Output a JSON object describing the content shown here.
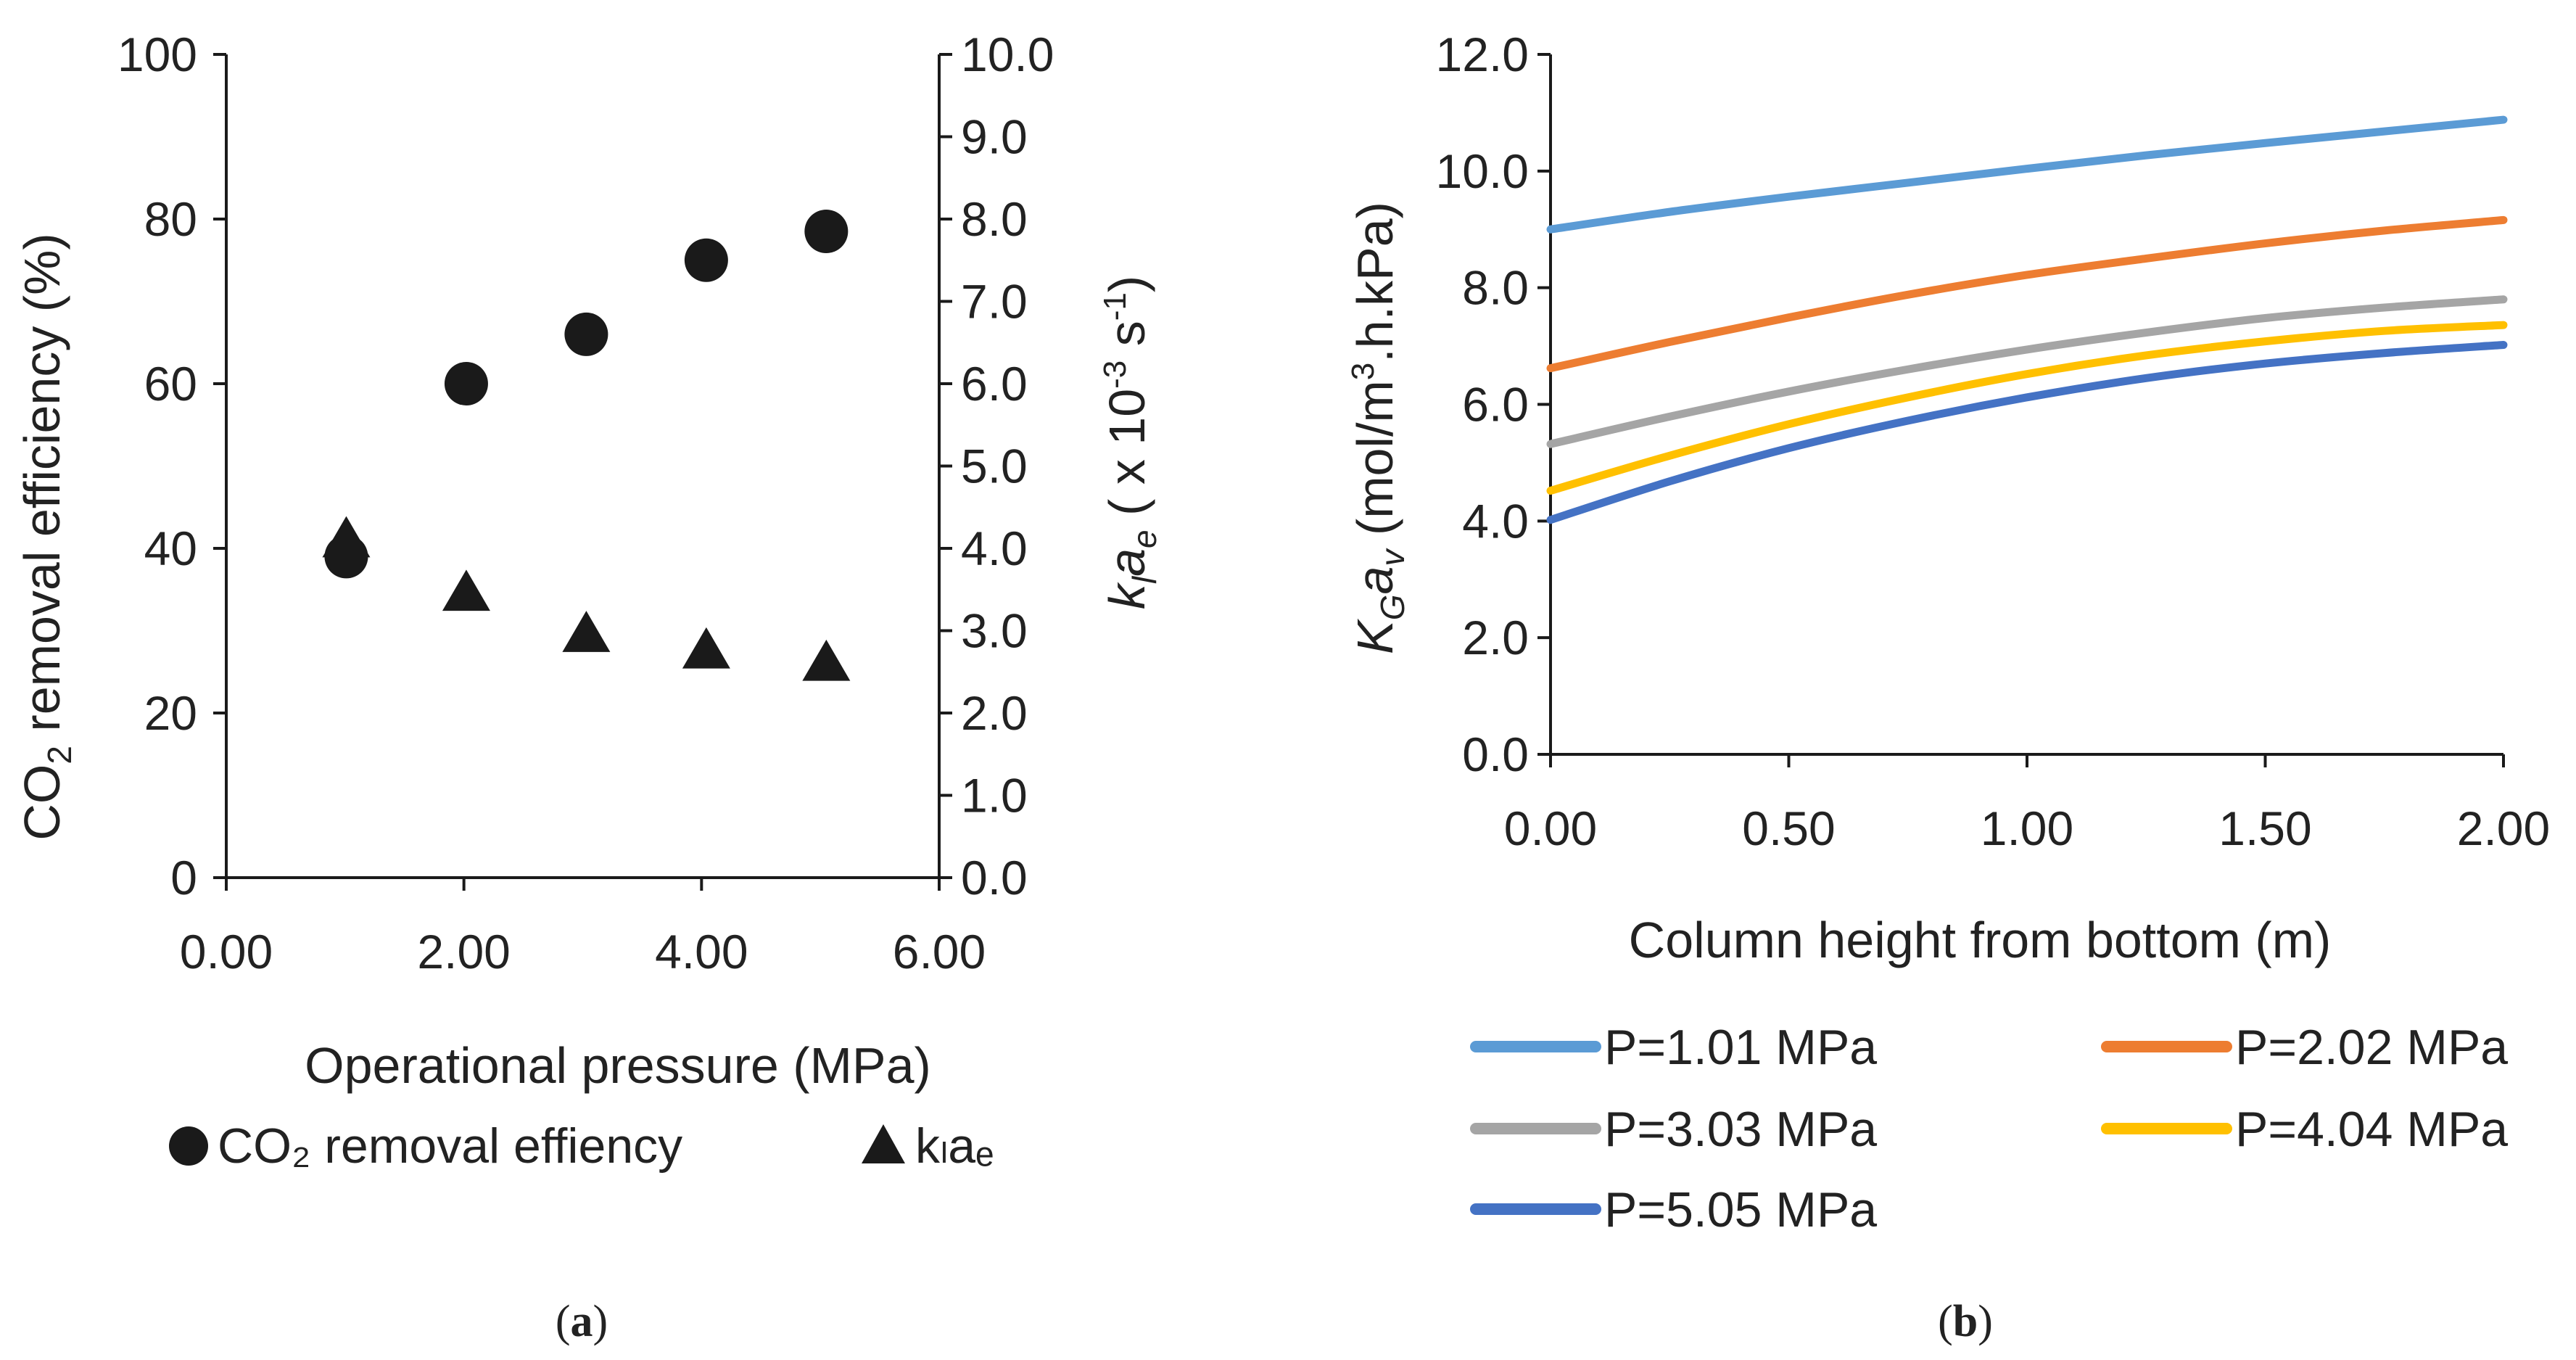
{
  "chart_data": [
    {
      "panel": "a",
      "caption": "(a)",
      "caption_parts": {
        "open": "(",
        "letter": "a",
        "close": ")"
      },
      "type": "scatter",
      "xlabel": "Operational pressure (MPa)",
      "xlim": [
        0,
        6
      ],
      "xticks": [
        "0.00",
        "2.00",
        "4.00",
        "6.00"
      ],
      "ylabel_left": {
        "text": "CO",
        "sub": "2",
        "rest": " removal efficiency (%)"
      },
      "ylim_left": [
        0,
        100
      ],
      "yticks_left": [
        "0",
        "20",
        "40",
        "60",
        "80",
        "100"
      ],
      "ylabel_right": {
        "k": "k",
        "k_sub": "l",
        "a": "a",
        "a_sub": "e",
        "open": " ( x 10",
        "exp1": "-3",
        "mid": " s",
        "exp2": "-1",
        "close": ")"
      },
      "ylim_right": [
        0,
        10
      ],
      "yticks_right": [
        "0.0",
        "1.0",
        "2.0",
        "3.0",
        "4.0",
        "5.0",
        "6.0",
        "7.0",
        "8.0",
        "9.0",
        "10.0"
      ],
      "series": [
        {
          "name": "CO₂ removal effiency",
          "marker": "circle",
          "axis": "left",
          "x": [
            1.01,
            2.02,
            3.03,
            4.04,
            5.05
          ],
          "y": [
            39,
            60,
            66,
            75,
            78.5
          ]
        },
        {
          "name": "kₗaₑ",
          "marker": "triangle",
          "axis": "right",
          "x": [
            1.01,
            2.02,
            3.03,
            4.04,
            5.05
          ],
          "y": [
            4.1,
            3.45,
            2.95,
            2.75,
            2.6
          ]
        }
      ]
    },
    {
      "panel": "b",
      "caption": "(b)",
      "caption_parts": {
        "open": "(",
        "letter": "b",
        "close": ")"
      },
      "type": "line",
      "xlabel": "Column height from bottom (m)",
      "xlim": [
        0,
        2
      ],
      "xticks": [
        "0.00",
        "0.50",
        "1.00",
        "1.50",
        "2.00"
      ],
      "ylabel": {
        "K": "K",
        "K_sub": "G",
        "a": "a",
        "a_sub": "v",
        "open": " (mol/m",
        "exp": "3",
        "close": ".h.kPa)"
      },
      "ylim": [
        0,
        12
      ],
      "yticks": [
        "0.0",
        "2.0",
        "4.0",
        "6.0",
        "8.0",
        "10.0",
        "12.0"
      ],
      "x": [
        0,
        0.25,
        0.5,
        0.75,
        1.0,
        1.25,
        1.5,
        1.75,
        2.0
      ],
      "series": [
        {
          "name": "P=1.01 MPa",
          "color": "#5b9bd5",
          "values": [
            9.0,
            9.3,
            9.56,
            9.8,
            10.04,
            10.27,
            10.48,
            10.68,
            10.88
          ]
        },
        {
          "name": "P=2.02 MPa",
          "color": "#ed7d31",
          "values": [
            6.62,
            7.07,
            7.49,
            7.88,
            8.22,
            8.5,
            8.76,
            8.98,
            9.16
          ]
        },
        {
          "name": "P=3.03 MPa",
          "color": "#a5a5a5",
          "values": [
            5.32,
            5.79,
            6.22,
            6.6,
            6.94,
            7.23,
            7.48,
            7.66,
            7.8
          ]
        },
        {
          "name": "P=4.04 MPa",
          "color": "#ffc000",
          "values": [
            4.52,
            5.12,
            5.66,
            6.12,
            6.52,
            6.84,
            7.08,
            7.26,
            7.36
          ]
        },
        {
          "name": "P=5.05 MPa",
          "color": "#4472c4",
          "values": [
            4.02,
            4.68,
            5.25,
            5.72,
            6.12,
            6.45,
            6.7,
            6.88,
            7.02
          ]
        }
      ]
    }
  ]
}
